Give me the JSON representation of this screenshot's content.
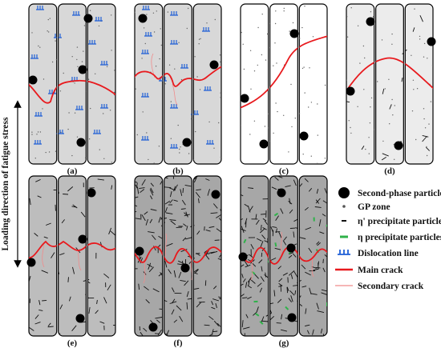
{
  "axis": {
    "label": "Loading direction of fatigue stress"
  },
  "panels": [
    {
      "label": "(a)",
      "fill": "#d8d8d8",
      "dislocations": true,
      "gp": true,
      "eta_prime": 0,
      "eta": 0
    },
    {
      "label": "(b)",
      "fill": "#d8d8d8",
      "dislocations": true,
      "gp": true,
      "eta_prime": 0,
      "eta": 0
    },
    {
      "label": "(c)",
      "fill": "#ffffff",
      "dislocations": false,
      "gp": true,
      "eta_prime": 0,
      "eta": 0
    },
    {
      "label": "(d)",
      "fill": "#ececec",
      "dislocations": false,
      "gp": true,
      "eta_prime": 14,
      "eta": 0
    },
    {
      "label": "(e)",
      "fill": "#bdbdbd",
      "dislocations": false,
      "gp": false,
      "eta_prime": 60,
      "eta": 0
    },
    {
      "label": "(f)",
      "fill": "#a7a7a7",
      "dislocations": false,
      "gp": false,
      "eta_prime": 170,
      "eta": 0
    },
    {
      "label": "(g)",
      "fill": "#a7a7a7",
      "dislocations": false,
      "gp": false,
      "eta_prime": 170,
      "eta": 14
    }
  ],
  "legend": {
    "items": [
      {
        "label": "Second-phase particles",
        "icon": "black-dot-icon"
      },
      {
        "label": "GP zone",
        "icon": "small-dot-icon"
      },
      {
        "label": "η' precipitate particles",
        "icon": "black-dash-icon"
      },
      {
        "label": "η precipitate particles",
        "icon": "green-dash-icon"
      },
      {
        "label": "Dislocation line",
        "icon": "dislocation-icon"
      },
      {
        "label": "Main crack",
        "icon": "red-line-icon"
      },
      {
        "label": "Secondary crack",
        "icon": "pink-line-icon"
      }
    ]
  },
  "colors": {
    "main_crack": "#e8191d",
    "secondary_crack": "#f08b8b",
    "dislocation": "#1f5fd6",
    "eta": "#2fb24a",
    "particle": "#000000"
  }
}
